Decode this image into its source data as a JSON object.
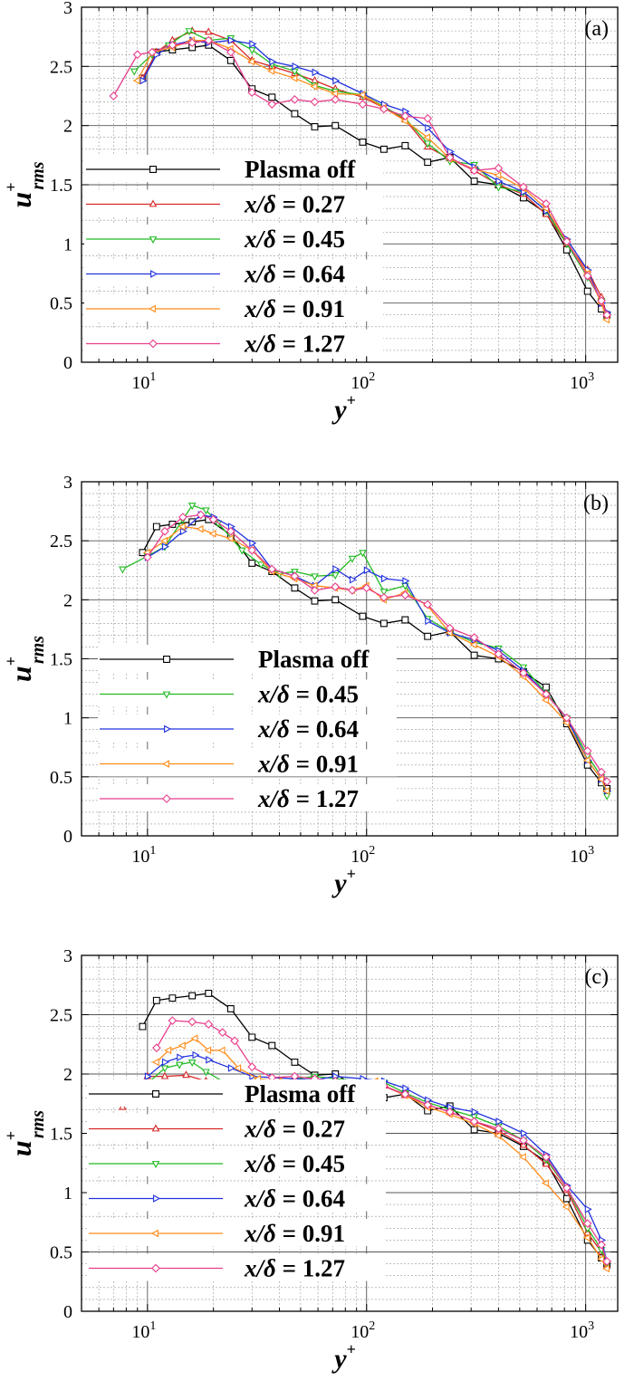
{
  "figure": {
    "xlabel_main": "y",
    "xlabel_sup": "+",
    "ylabel_main": "u",
    "ylabel_sub": "rms",
    "ylabel_sup": "+",
    "xtick_labels": [
      {
        "base": "10",
        "exp": "1",
        "value": 10
      },
      {
        "base": "10",
        "exp": "2",
        "value": 100
      },
      {
        "base": "10",
        "exp": "3",
        "value": 1000
      }
    ],
    "ytick_labels": [
      "0",
      "0.5",
      "1",
      "1.5",
      "2",
      "2.5",
      "3"
    ]
  },
  "chart_data": [
    {
      "type": "line",
      "panel_label": "(a)",
      "xscale": "log",
      "xlim": [
        5,
        1400
      ],
      "ylim": [
        0,
        3
      ],
      "grid": true,
      "legend_placement": "left-bottom",
      "series": [
        {
          "name": "Plasma off",
          "color": "#000000",
          "marker": "square",
          "x": [
            9.5,
            11,
            13,
            16,
            19,
            24,
            30,
            37,
            47,
            58,
            72,
            96,
            120,
            150,
            190,
            240,
            310,
            400,
            520,
            660,
            820,
            1020,
            1180,
            1250
          ],
          "y": [
            2.4,
            2.62,
            2.64,
            2.66,
            2.68,
            2.55,
            2.31,
            2.24,
            2.1,
            1.99,
            2.0,
            1.86,
            1.8,
            1.83,
            1.69,
            1.73,
            1.53,
            1.5,
            1.39,
            1.26,
            0.95,
            0.6,
            0.45,
            0.4
          ]
        },
        {
          "name": "x/δ = 0.27",
          "color": "#d62728",
          "marker": "triangle-up",
          "x": [
            9.5,
            11,
            13,
            16,
            19,
            24,
            30,
            37,
            47,
            58,
            72,
            96,
            120,
            150,
            190,
            240,
            310,
            400,
            520,
            660,
            820,
            1020,
            1180,
            1250
          ],
          "y": [
            2.4,
            2.62,
            2.72,
            2.8,
            2.79,
            2.72,
            2.55,
            2.5,
            2.44,
            2.38,
            2.31,
            2.24,
            2.15,
            2.05,
            1.82,
            1.72,
            1.62,
            1.5,
            1.42,
            1.25,
            1.0,
            0.78,
            0.55,
            0.4
          ]
        },
        {
          "name": "x/δ = 0.45",
          "color": "#22bb22",
          "marker": "triangle-down",
          "x": [
            8.7,
            10.5,
            12.5,
            15.5,
            19,
            24,
            30,
            37,
            47,
            58,
            72,
            96,
            120,
            150,
            190,
            240,
            310,
            400,
            520,
            660,
            820,
            1020,
            1180,
            1250
          ],
          "y": [
            2.46,
            2.6,
            2.68,
            2.8,
            2.72,
            2.74,
            2.64,
            2.52,
            2.46,
            2.34,
            2.29,
            2.26,
            2.16,
            2.06,
            1.85,
            1.7,
            1.67,
            1.48,
            1.44,
            1.28,
            1.0,
            0.72,
            0.52,
            0.38
          ]
        },
        {
          "name": "x/δ = 0.64",
          "color": "#2233dd",
          "marker": "triangle-right",
          "x": [
            9.5,
            11,
            13,
            16,
            19,
            24,
            30,
            37,
            47,
            58,
            72,
            96,
            120,
            150,
            190,
            240,
            310,
            400,
            520,
            660,
            820,
            1020,
            1180,
            1250
          ],
          "y": [
            2.38,
            2.6,
            2.68,
            2.72,
            2.7,
            2.72,
            2.69,
            2.54,
            2.5,
            2.45,
            2.38,
            2.27,
            2.18,
            2.12,
            1.98,
            1.78,
            1.65,
            1.53,
            1.44,
            1.28,
            1.04,
            0.78,
            0.5,
            0.42
          ]
        },
        {
          "name": "x/δ = 0.91",
          "color": "#ff8c1a",
          "marker": "triangle-left",
          "x": [
            9,
            10.5,
            13,
            16,
            19,
            24,
            30,
            37,
            47,
            58,
            72,
            96,
            120,
            150,
            190,
            240,
            310,
            400,
            520,
            660,
            820,
            1020,
            1180,
            1250
          ],
          "y": [
            2.38,
            2.62,
            2.66,
            2.72,
            2.72,
            2.65,
            2.54,
            2.46,
            2.4,
            2.33,
            2.27,
            2.26,
            2.15,
            2.04,
            1.9,
            1.72,
            1.63,
            1.58,
            1.47,
            1.3,
            1.02,
            0.75,
            0.5,
            0.36
          ]
        },
        {
          "name": "x/δ = 1.27",
          "color": "#e83e8c",
          "marker": "diamond",
          "x": [
            7,
            9,
            10.5,
            13,
            16,
            19,
            24,
            30,
            37,
            47,
            58,
            72,
            96,
            120,
            150,
            190,
            240,
            310,
            400,
            520,
            660,
            820,
            1020,
            1180,
            1250
          ],
          "y": [
            2.25,
            2.6,
            2.62,
            2.68,
            2.7,
            2.72,
            2.62,
            2.28,
            2.18,
            2.22,
            2.2,
            2.22,
            2.18,
            2.14,
            2.08,
            2.06,
            1.73,
            1.62,
            1.64,
            1.48,
            1.34,
            1.02,
            0.73,
            0.52,
            0.4
          ]
        }
      ]
    },
    {
      "type": "line",
      "panel_label": "(b)",
      "xscale": "log",
      "xlim": [
        5,
        1400
      ],
      "ylim": [
        0,
        3
      ],
      "grid": true,
      "legend_placement": "left-bottom",
      "series": [
        {
          "name": "Plasma off",
          "color": "#000000",
          "marker": "square",
          "x": [
            9.5,
            11,
            13,
            16,
            19,
            24,
            30,
            37,
            47,
            58,
            72,
            96,
            120,
            150,
            190,
            240,
            310,
            400,
            520,
            660,
            820,
            1020,
            1180,
            1250
          ],
          "y": [
            2.4,
            2.62,
            2.64,
            2.66,
            2.68,
            2.55,
            2.31,
            2.24,
            2.1,
            1.99,
            2.0,
            1.86,
            1.8,
            1.83,
            1.69,
            1.73,
            1.53,
            1.5,
            1.39,
            1.26,
            0.95,
            0.6,
            0.45,
            0.4
          ]
        },
        {
          "name": "x/δ = 0.45",
          "color": "#22bb22",
          "marker": "triangle-down",
          "x": [
            7.7,
            10,
            12,
            14.5,
            16,
            18.5,
            21,
            27,
            33,
            40,
            47,
            58,
            72,
            86,
            96,
            120,
            150,
            190,
            240,
            310,
            400,
            520,
            660,
            820,
            1020,
            1180,
            1250
          ],
          "y": [
            2.26,
            2.37,
            2.45,
            2.68,
            2.8,
            2.76,
            2.65,
            2.42,
            2.3,
            2.22,
            2.24,
            2.2,
            2.21,
            2.35,
            2.4,
            2.07,
            2.12,
            1.84,
            1.73,
            1.64,
            1.59,
            1.43,
            1.21,
            1.0,
            0.68,
            0.5,
            0.34
          ]
        },
        {
          "name": "x/δ = 0.64",
          "color": "#2233dd",
          "marker": "triangle-right",
          "x": [
            10,
            12,
            14.5,
            17.5,
            20,
            24,
            30,
            37,
            47,
            58,
            72,
            86,
            100,
            120,
            150,
            190,
            240,
            310,
            400,
            520,
            660,
            820,
            1020,
            1180,
            1250
          ],
          "y": [
            2.36,
            2.45,
            2.58,
            2.72,
            2.7,
            2.62,
            2.48,
            2.26,
            2.2,
            2.12,
            2.26,
            2.17,
            2.25,
            2.18,
            2.16,
            1.82,
            1.72,
            1.66,
            1.57,
            1.4,
            1.2,
            1.0,
            0.64,
            0.48,
            0.38
          ]
        },
        {
          "name": "x/δ = 0.91",
          "color": "#ff8c1a",
          "marker": "triangle-left",
          "x": [
            10,
            12,
            14.5,
            17.5,
            20,
            24,
            30,
            37,
            47,
            58,
            72,
            86,
            100,
            120,
            150,
            190,
            240,
            310,
            400,
            520,
            660,
            820,
            1020,
            1180,
            1250
          ],
          "y": [
            2.4,
            2.5,
            2.62,
            2.6,
            2.56,
            2.52,
            2.42,
            2.24,
            2.18,
            2.12,
            2.1,
            2.08,
            2.12,
            2.0,
            2.06,
            1.95,
            1.72,
            1.62,
            1.52,
            1.35,
            1.15,
            0.96,
            0.64,
            0.48,
            0.38
          ]
        },
        {
          "name": "x/δ = 1.27",
          "color": "#e83e8c",
          "marker": "diamond",
          "x": [
            10,
            12,
            14.5,
            17.5,
            20,
            24,
            30,
            37,
            47,
            58,
            72,
            86,
            100,
            120,
            150,
            190,
            240,
            310,
            400,
            520,
            660,
            820,
            1020,
            1180,
            1250
          ],
          "y": [
            2.36,
            2.58,
            2.7,
            2.72,
            2.68,
            2.58,
            2.42,
            2.26,
            2.2,
            2.08,
            2.11,
            2.08,
            2.1,
            2.02,
            2.04,
            1.96,
            1.76,
            1.68,
            1.54,
            1.38,
            1.2,
            1.0,
            0.72,
            0.54,
            0.46
          ]
        }
      ]
    },
    {
      "type": "line",
      "panel_label": "(c)",
      "xscale": "log",
      "xlim": [
        5,
        1400
      ],
      "ylim": [
        0,
        3
      ],
      "grid": true,
      "legend_placement": "left-bottom",
      "series": [
        {
          "name": "Plasma off",
          "color": "#000000",
          "marker": "square",
          "x": [
            9.5,
            11,
            13,
            16,
            19,
            24,
            30,
            37,
            47,
            58,
            72,
            96,
            120,
            150,
            190,
            240,
            310,
            400,
            520,
            660,
            820,
            1020,
            1180,
            1250
          ],
          "y": [
            2.4,
            2.62,
            2.64,
            2.66,
            2.68,
            2.55,
            2.31,
            2.24,
            2.1,
            1.99,
            2.0,
            1.86,
            1.8,
            1.83,
            1.69,
            1.73,
            1.53,
            1.5,
            1.39,
            1.26,
            0.95,
            0.6,
            0.45,
            0.4
          ]
        },
        {
          "name": "x/δ = 0.27",
          "color": "#d62728",
          "marker": "triangle-up",
          "x": [
            7.7,
            10,
            12,
            15,
            18.5,
            24,
            30,
            37,
            47,
            58,
            72,
            96,
            120,
            150,
            190,
            240,
            310,
            400,
            520,
            660,
            820,
            1020,
            1180,
            1250
          ],
          "y": [
            1.72,
            1.98,
            1.98,
            1.99,
            1.94,
            1.9,
            1.88,
            1.9,
            1.96,
            1.95,
            1.94,
            1.92,
            1.9,
            1.82,
            1.74,
            1.68,
            1.6,
            1.52,
            1.4,
            1.24,
            1.02,
            0.66,
            0.5,
            0.38
          ]
        },
        {
          "name": "x/δ = 0.45",
          "color": "#22bb22",
          "marker": "triangle-down",
          "x": [
            10,
            12,
            14,
            16,
            18.5,
            24,
            30,
            37,
            47,
            58,
            72,
            96,
            120,
            150,
            190,
            240,
            310,
            400,
            520,
            660,
            820,
            1020,
            1180,
            1250
          ],
          "y": [
            1.92,
            2.05,
            2.08,
            2.1,
            2.02,
            1.9,
            1.88,
            1.92,
            1.96,
            1.98,
            1.96,
            1.94,
            1.93,
            1.84,
            1.76,
            1.7,
            1.64,
            1.56,
            1.44,
            1.28,
            1.04,
            0.7,
            0.52,
            0.4
          ]
        },
        {
          "name": "x/δ = 0.64",
          "color": "#2233dd",
          "marker": "triangle-right",
          "x": [
            10,
            12,
            14,
            16.5,
            19,
            24,
            30,
            37,
            47,
            58,
            72,
            96,
            120,
            150,
            190,
            240,
            310,
            400,
            520,
            660,
            820,
            1020,
            1180,
            1250
          ],
          "y": [
            1.98,
            2.1,
            2.14,
            2.16,
            2.12,
            2.05,
            1.98,
            1.97,
            1.96,
            1.95,
            1.98,
            1.96,
            1.94,
            1.88,
            1.78,
            1.72,
            1.68,
            1.6,
            1.5,
            1.32,
            1.06,
            0.86,
            0.6,
            0.42
          ]
        },
        {
          "name": "x/δ = 0.91",
          "color": "#ff8c1a",
          "marker": "triangle-left",
          "x": [
            11,
            12.5,
            14.5,
            16.5,
            19,
            22,
            26,
            32,
            40,
            50,
            60,
            72,
            90,
            110,
            150,
            190,
            240,
            310,
            400,
            520,
            660,
            820,
            1020,
            1180,
            1250
          ],
          "y": [
            2.1,
            2.2,
            2.24,
            2.3,
            2.2,
            2.2,
            2.05,
            1.96,
            1.94,
            1.9,
            1.84,
            1.88,
            1.92,
            1.94,
            1.82,
            1.72,
            1.66,
            1.58,
            1.48,
            1.3,
            1.08,
            0.88,
            0.62,
            0.44,
            0.36
          ]
        },
        {
          "name": "x/δ = 1.27",
          "color": "#e83e8c",
          "marker": "diamond",
          "x": [
            11,
            13,
            16,
            19,
            22,
            25,
            30,
            37,
            47,
            58,
            72,
            96,
            120,
            150,
            190,
            240,
            310,
            400,
            520,
            660,
            820,
            1020,
            1180,
            1250
          ],
          "y": [
            2.22,
            2.45,
            2.44,
            2.42,
            2.35,
            2.28,
            2.06,
            1.97,
            1.98,
            1.96,
            1.94,
            1.92,
            1.9,
            1.83,
            1.74,
            1.68,
            1.6,
            1.54,
            1.44,
            1.3,
            1.04,
            0.74,
            0.56,
            0.42
          ]
        }
      ]
    }
  ]
}
